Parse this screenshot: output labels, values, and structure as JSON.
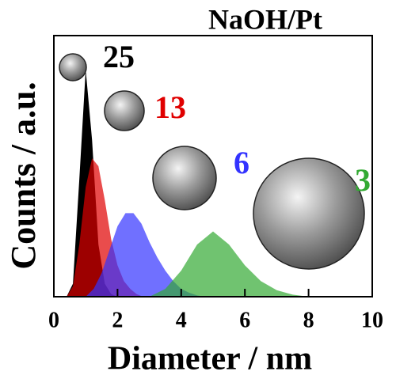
{
  "chart_data": {
    "type": "area",
    "title": "NaOH/Pt",
    "x_label": "Diameter / nm",
    "y_label": "Counts / a.u.",
    "xlim": [
      0,
      10
    ],
    "xticks": [
      0,
      2,
      4,
      6,
      8,
      10
    ],
    "ylim": [
      0,
      1
    ],
    "series": [
      {
        "name": "25",
        "color": "#000000",
        "x": [
          0.4,
          0.6,
          0.8,
          1.0,
          1.2,
          1.4,
          1.6,
          1.8,
          2.0
        ],
        "values": [
          0,
          0.05,
          0.45,
          0.87,
          0.6,
          0.2,
          0.05,
          0.01,
          0
        ]
      },
      {
        "name": "13",
        "color": "#e00000",
        "x": [
          0.4,
          0.6,
          0.8,
          1.0,
          1.2,
          1.4,
          1.6,
          1.8,
          2.0,
          2.2,
          2.4,
          2.6,
          2.8
        ],
        "values": [
          0,
          0.04,
          0.2,
          0.42,
          0.53,
          0.5,
          0.37,
          0.22,
          0.12,
          0.06,
          0.03,
          0.01,
          0
        ]
      },
      {
        "name": "6",
        "color": "#3333ff",
        "x": [
          1.0,
          1.25,
          1.5,
          1.75,
          2.0,
          2.25,
          2.5,
          2.75,
          3.0,
          3.25,
          3.5,
          3.75,
          4.0,
          4.25,
          4.5,
          4.75
        ],
        "values": [
          0,
          0.03,
          0.09,
          0.18,
          0.27,
          0.32,
          0.32,
          0.28,
          0.21,
          0.15,
          0.1,
          0.06,
          0.03,
          0.015,
          0.005,
          0
        ]
      },
      {
        "name": "3",
        "color": "#33aa33",
        "x": [
          3.0,
          3.5,
          4.0,
          4.5,
          5.0,
          5.5,
          6.0,
          6.5,
          7.0,
          7.5,
          8.0
        ],
        "values": [
          0,
          0.03,
          0.1,
          0.2,
          0.25,
          0.2,
          0.12,
          0.06,
          0.025,
          0.008,
          0
        ]
      }
    ]
  }
}
